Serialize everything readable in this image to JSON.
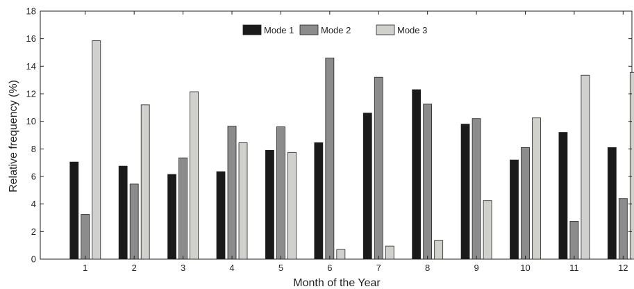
{
  "chart_data": {
    "type": "bar",
    "title": "",
    "xlabel": "Month of the Year",
    "ylabel": "Relative frequency (%)",
    "ylim": [
      0,
      18
    ],
    "yticks": [
      0,
      2,
      4,
      6,
      8,
      10,
      12,
      14,
      16,
      18
    ],
    "categories": [
      "1",
      "2",
      "3",
      "4",
      "5",
      "6",
      "7",
      "8",
      "9",
      "10",
      "11",
      "12"
    ],
    "series": [
      {
        "name": "Mode 1",
        "color": "#1a1a1a",
        "values": [
          7.05,
          6.75,
          6.15,
          6.35,
          7.9,
          8.45,
          10.6,
          12.3,
          9.8,
          7.2,
          9.2,
          8.1
        ]
      },
      {
        "name": "Mode 2",
        "color": "#8c8c8c",
        "values": [
          3.25,
          5.45,
          7.35,
          9.65,
          9.6,
          14.6,
          13.2,
          11.25,
          10.2,
          8.1,
          2.75,
          4.4
        ]
      },
      {
        "name": "Mode 3",
        "color": "#d0d0cc",
        "values": [
          15.85,
          11.2,
          12.15,
          8.45,
          7.75,
          0.7,
          0.95,
          1.35,
          4.25,
          10.25,
          13.35,
          13.55
        ]
      }
    ],
    "legend_position": "top-center",
    "grid": false
  }
}
